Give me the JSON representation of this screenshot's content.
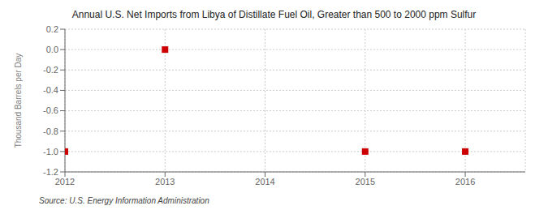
{
  "chart_data": {
    "type": "scatter",
    "title": "Annual U.S. Net Imports from Libya of Distillate Fuel Oil, Greater than 500 to 2000 ppm Sulfur",
    "ylabel": "Thousand Barrels per Day",
    "source": "Source: U.S. Energy Information Administration",
    "x": [
      2012,
      2013,
      2015,
      2016
    ],
    "values": [
      -1.0,
      0.0,
      -1.0,
      -1.0
    ],
    "color": "#CC0000",
    "marker": "square",
    "xlim": [
      2012,
      2016.6
    ],
    "ylim": [
      -1.2,
      0.2
    ],
    "xticks": [
      2012,
      2013,
      2014,
      2015,
      2016
    ],
    "yticks": [
      -1.2,
      {
        "value": -1.0,
        "label": "-1.0"
      },
      -0.8,
      -0.6,
      -0.4,
      -0.2,
      {
        "value": 0.0,
        "label": "0.0"
      },
      0.2
    ],
    "grid": true
  }
}
